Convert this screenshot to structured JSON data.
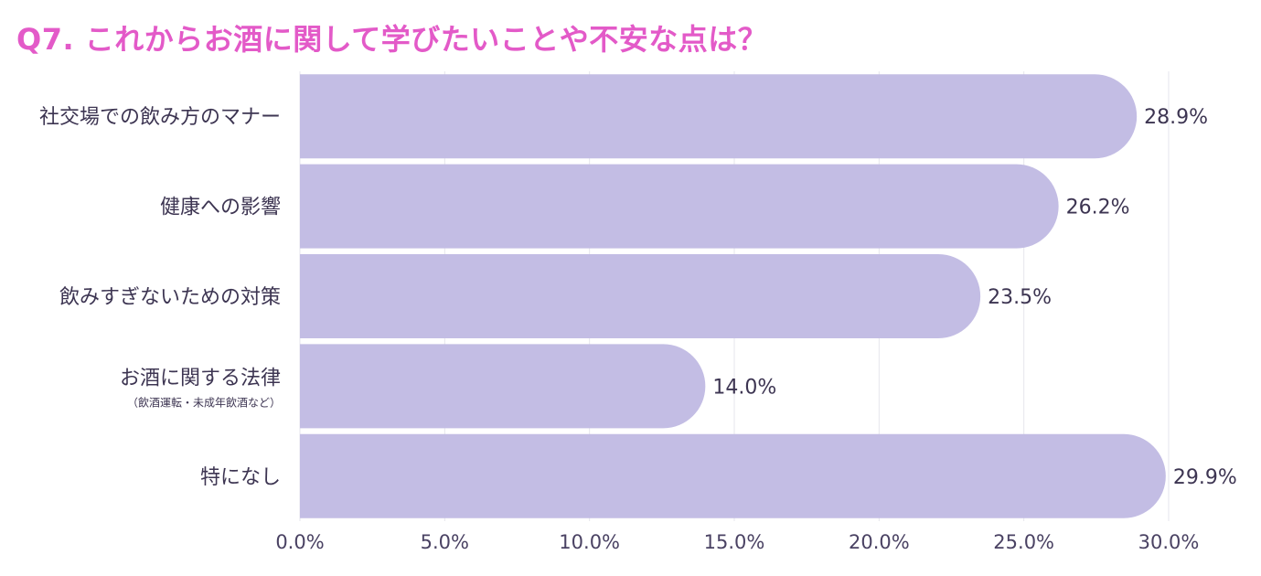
{
  "title": "Q7. これからお酒に関して学びたいことや不安な点は？",
  "colors": {
    "title": "#e35ac8",
    "bar": "#c3bde4",
    "text": "#3d3552",
    "grid": "#e6e6ec"
  },
  "chart_data": {
    "type": "bar",
    "orientation": "horizontal",
    "categories": [
      {
        "label": "社交場での飲み方のマナー",
        "sublabel": ""
      },
      {
        "label": "健康への影響",
        "sublabel": ""
      },
      {
        "label": "飲みすぎないための対策",
        "sublabel": ""
      },
      {
        "label": "お酒に関する法律",
        "sublabel": "（飲酒運転・未成年飲酒など）"
      },
      {
        "label": "特になし",
        "sublabel": ""
      }
    ],
    "values": [
      28.9,
      26.2,
      23.5,
      14.0,
      29.9
    ],
    "value_labels": [
      "28.9%",
      "26.2%",
      "23.5%",
      "14.0%",
      "29.9%"
    ],
    "xlim": [
      0,
      30
    ],
    "xticks": [
      "0.0%",
      "5.0%",
      "10.0%",
      "15.0%",
      "20.0%",
      "25.0%",
      "30.0%"
    ],
    "xtick_values": [
      0,
      5,
      10,
      15,
      20,
      25,
      30
    ],
    "grid": true
  }
}
